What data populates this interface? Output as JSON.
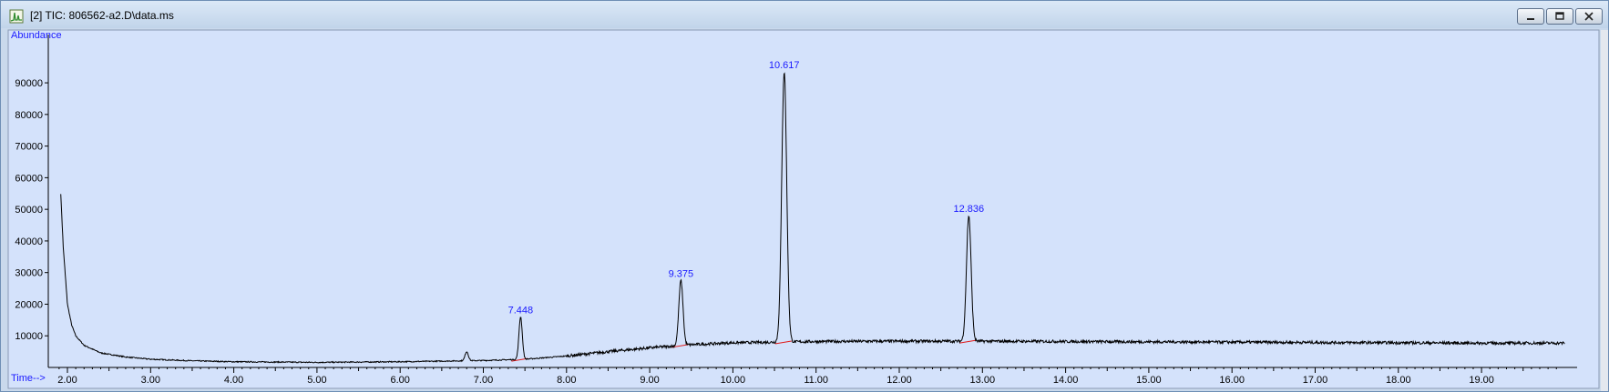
{
  "window": {
    "title": "[2] TIC: 806562-a2.D\\data.ms"
  },
  "colors": {
    "plot_bg": "#d4e2fb",
    "trace": "#000000",
    "peak_label": "#1a1aff",
    "baseline_marker": "#e01b1b"
  },
  "icons": {
    "app": "chromatogram-icon",
    "minimize": "minimize-icon",
    "maximize": "maximize-icon",
    "close": "close-icon"
  },
  "chart_data": {
    "type": "line",
    "title": "",
    "xlabel": "Time-->",
    "ylabel": "Abundance",
    "xlim": [
      1.9,
      20.0
    ],
    "ylim": [
      0,
      95000
    ],
    "x_ticks": [
      "2.00",
      "3.00",
      "4.00",
      "5.00",
      "6.00",
      "7.00",
      "8.00",
      "9.00",
      "10.00",
      "11.00",
      "12.00",
      "13.00",
      "14.00",
      "15.00",
      "16.00",
      "17.00",
      "18.00",
      "19.00"
    ],
    "y_ticks": [
      "10000",
      "20000",
      "30000",
      "40000",
      "50000",
      "60000",
      "70000",
      "80000",
      "90000"
    ],
    "grid": false,
    "baseline": [
      [
        1.92,
        55000
      ],
      [
        1.95,
        38000
      ],
      [
        2.0,
        20000
      ],
      [
        2.05,
        13500
      ],
      [
        2.1,
        10000
      ],
      [
        2.2,
        7000
      ],
      [
        2.4,
        4600
      ],
      [
        2.7,
        3300
      ],
      [
        3.0,
        2600
      ],
      [
        3.5,
        2100
      ],
      [
        4.0,
        1800
      ],
      [
        5.0,
        1600
      ],
      [
        6.0,
        1800
      ],
      [
        6.5,
        2000
      ],
      [
        7.0,
        2200
      ],
      [
        7.5,
        2600
      ],
      [
        8.0,
        3600
      ],
      [
        8.5,
        5000
      ],
      [
        9.0,
        6200
      ],
      [
        9.5,
        7200
      ],
      [
        10.0,
        7800
      ],
      [
        11.0,
        8200
      ],
      [
        12.0,
        8300
      ],
      [
        13.0,
        8300
      ],
      [
        14.0,
        8200
      ],
      [
        15.0,
        8100
      ],
      [
        16.0,
        8000
      ],
      [
        17.0,
        7900
      ],
      [
        18.0,
        7800
      ],
      [
        19.0,
        7700
      ],
      [
        20.0,
        7700
      ]
    ],
    "peaks": [
      {
        "label": "7.448",
        "rt": 7.448,
        "apex": 16000,
        "width": 0.02
      },
      {
        "label": "9.375",
        "rt": 9.375,
        "apex": 27500,
        "width": 0.025
      },
      {
        "label": "10.617",
        "rt": 10.617,
        "apex": 93500,
        "width": 0.03
      },
      {
        "label": "12.836",
        "rt": 12.836,
        "apex": 48000,
        "width": 0.028
      },
      {
        "label": "",
        "rt": 6.8,
        "apex": 5000,
        "width": 0.02
      }
    ]
  }
}
